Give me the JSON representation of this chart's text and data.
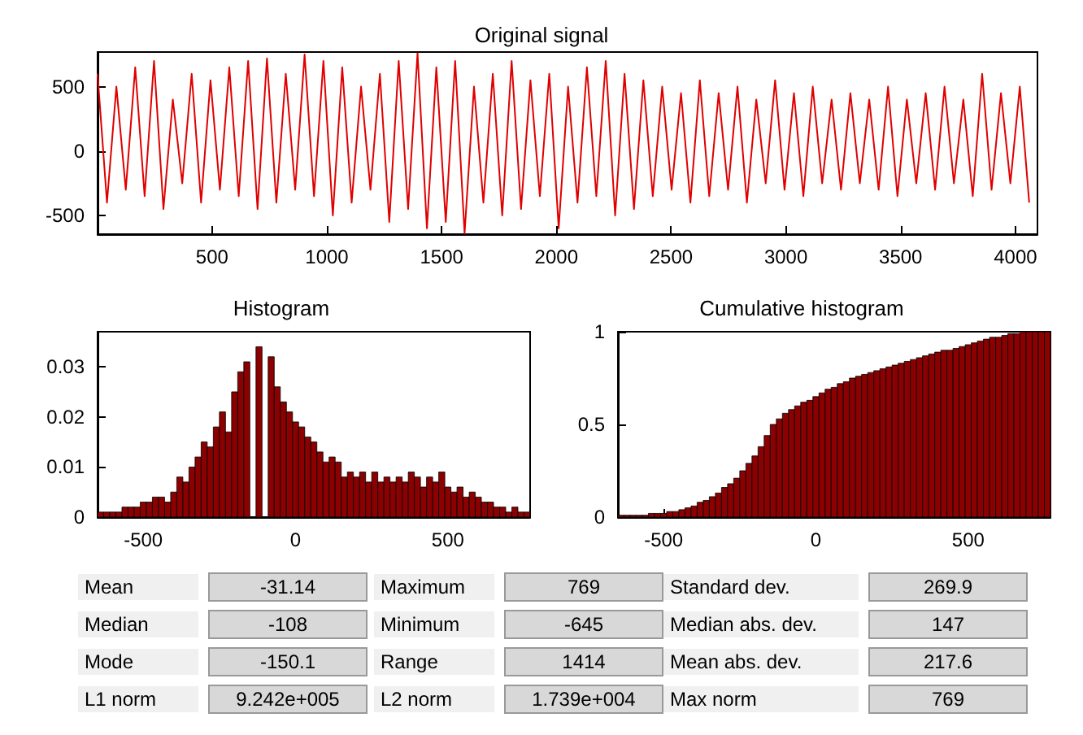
{
  "chart_data": [
    {
      "type": "line",
      "title": "Original signal",
      "color": "#e00000",
      "x": [
        1,
        42,
        83,
        124,
        165,
        206,
        247,
        288,
        329,
        370,
        411,
        452,
        493,
        534,
        575,
        616,
        657,
        698,
        739,
        780,
        821,
        862,
        903,
        944,
        985,
        1026,
        1067,
        1108,
        1149,
        1190,
        1231,
        1272,
        1313,
        1354,
        1395,
        1436,
        1477,
        1518,
        1559,
        1600,
        1641,
        1682,
        1723,
        1764,
        1805,
        1846,
        1887,
        1928,
        1969,
        2010,
        2051,
        2092,
        2133,
        2174,
        2215,
        2256,
        2297,
        2338,
        2379,
        2420,
        2461,
        2502,
        2543,
        2584,
        2625,
        2666,
        2707,
        2748,
        2789,
        2830,
        2871,
        2912,
        2953,
        2994,
        3035,
        3076,
        3117,
        3158,
        3199,
        3240,
        3281,
        3322,
        3363,
        3404,
        3445,
        3486,
        3527,
        3568,
        3609,
        3650,
        3691,
        3732,
        3773,
        3814,
        3855,
        3896,
        3937,
        3978,
        4019,
        4060
      ],
      "values": [
        600,
        -400,
        500,
        -300,
        650,
        -350,
        700,
        -450,
        400,
        -250,
        600,
        -400,
        550,
        -300,
        650,
        -350,
        700,
        -450,
        720,
        -400,
        600,
        -300,
        750,
        -350,
        700,
        -500,
        650,
        -400,
        500,
        -300,
        600,
        -550,
        700,
        -450,
        760,
        -600,
        650,
        -550,
        700,
        -640,
        500,
        -400,
        600,
        -500,
        700,
        -450,
        550,
        -350,
        600,
        -600,
        500,
        -400,
        650,
        -350,
        700,
        -500,
        600,
        -450,
        550,
        -350,
        500,
        -300,
        450,
        -400,
        550,
        -350,
        450,
        -300,
        500,
        -400,
        400,
        -250,
        550,
        -300,
        450,
        -350,
        500,
        -250,
        400,
        -300,
        450,
        -250,
        400,
        -300,
        500,
        -350,
        400,
        -250,
        450,
        -300,
        500,
        -250,
        400,
        -350,
        600,
        -300,
        450,
        -250,
        500,
        -400
      ],
      "xlim": [
        1,
        4096
      ],
      "xticks": [
        500,
        1000,
        1500,
        2000,
        2500,
        3000,
        3500,
        4000
      ],
      "ylim": [
        -645,
        769
      ],
      "yticks": [
        -500,
        0,
        500
      ],
      "grid": false,
      "marker": "none",
      "line_style": "solid"
    },
    {
      "type": "histogram",
      "title": "Histogram",
      "color": "#8b0000",
      "bins": [
        -650,
        -630,
        -610,
        -590,
        -570,
        -550,
        -530,
        -510,
        -490,
        -470,
        -450,
        -430,
        -410,
        -390,
        -370,
        -350,
        -330,
        -310,
        -290,
        -270,
        -250,
        -230,
        -210,
        -190,
        -170,
        -150,
        -130,
        -110,
        -90,
        -70,
        -50,
        -30,
        -10,
        10,
        30,
        50,
        70,
        90,
        110,
        130,
        150,
        170,
        190,
        210,
        230,
        250,
        270,
        290,
        310,
        330,
        350,
        370,
        390,
        410,
        430,
        450,
        470,
        490,
        510,
        530,
        550,
        570,
        590,
        610,
        630,
        650,
        670,
        690,
        710,
        730,
        750,
        770
      ],
      "values": [
        0.001,
        0.001,
        0.001,
        0.001,
        0.002,
        0.002,
        0.002,
        0.003,
        0.003,
        0.004,
        0.004,
        0.003,
        0.005,
        0.008,
        0.007,
        0.01,
        0.012,
        0.015,
        0.014,
        0.018,
        0.021,
        0.017,
        0.025,
        0.029,
        0.031,
        null,
        0.034,
        null,
        0.032,
        0.026,
        0.023,
        0.021,
        0.019,
        0.018,
        0.016,
        0.015,
        0.013,
        0.011,
        0.012,
        0.011,
        0.008,
        0.009,
        0.008,
        0.009,
        0.007,
        0.009,
        0.007,
        0.008,
        0.007,
        0.008,
        0.007,
        0.009,
        0.008,
        0.006,
        0.008,
        0.007,
        0.009,
        0.006,
        0.005,
        0.006,
        0.004,
        0.005,
        0.004,
        0.003,
        0.003,
        0.002,
        0.002,
        0.001,
        0.002,
        0.001,
        0.001
      ],
      "xlim": [
        -650,
        770
      ],
      "xticks": [
        -500,
        0,
        500
      ],
      "ylim": [
        0,
        0.037
      ],
      "yticks": [
        0,
        0.01,
        0.02,
        0.03
      ],
      "grid": false
    },
    {
      "type": "histogram",
      "title": "Cumulative histogram",
      "color": "#8b0000",
      "bins": [
        -650,
        -630,
        -610,
        -590,
        -570,
        -550,
        -530,
        -510,
        -490,
        -470,
        -450,
        -430,
        -410,
        -390,
        -370,
        -350,
        -330,
        -310,
        -290,
        -270,
        -250,
        -230,
        -210,
        -190,
        -170,
        -150,
        -130,
        -110,
        -90,
        -70,
        -50,
        -30,
        -10,
        10,
        30,
        50,
        70,
        90,
        110,
        130,
        150,
        170,
        190,
        210,
        230,
        250,
        270,
        290,
        310,
        330,
        350,
        370,
        390,
        410,
        430,
        450,
        470,
        490,
        510,
        530,
        550,
        570,
        590,
        610,
        630,
        650,
        670,
        690,
        710,
        730,
        750,
        770
      ],
      "values": [
        0.01,
        0.01,
        0.01,
        0.01,
        0.01,
        0.02,
        0.02,
        0.02,
        0.03,
        0.03,
        0.04,
        0.05,
        0.06,
        0.08,
        0.09,
        0.11,
        0.13,
        0.16,
        0.18,
        0.21,
        0.25,
        0.29,
        0.33,
        0.38,
        0.44,
        0.5,
        0.53,
        0.56,
        0.58,
        0.6,
        0.62,
        0.63,
        0.65,
        0.67,
        0.69,
        0.7,
        0.72,
        0.73,
        0.75,
        0.76,
        0.77,
        0.78,
        0.79,
        0.8,
        0.81,
        0.82,
        0.83,
        0.84,
        0.85,
        0.86,
        0.87,
        0.88,
        0.89,
        0.9,
        0.9,
        0.91,
        0.92,
        0.93,
        0.94,
        0.95,
        0.96,
        0.97,
        0.97,
        0.98,
        0.99,
        0.99,
        1,
        1,
        1,
        1,
        1
      ],
      "xlim": [
        -650,
        770
      ],
      "xticks": [
        -500,
        0,
        500
      ],
      "ylim": [
        0,
        1
      ],
      "yticks": [
        0,
        0.5,
        1
      ],
      "grid": false
    },
    {
      "type": "other",
      "annotations": [
        "Mean",
        "-31.14",
        "Maximum",
        "769",
        "Standard dev.",
        "269.9",
        "Median",
        "-108",
        "Minimum",
        "-645",
        "Median abs. dev.",
        "147",
        "Mode",
        "-150.1",
        "Range",
        "1414",
        "Mean abs. dev.",
        "217.6",
        "L1 norm",
        "9.242e+005",
        "L2 norm",
        "1.739e+004",
        "Max norm",
        "769"
      ]
    }
  ]
}
